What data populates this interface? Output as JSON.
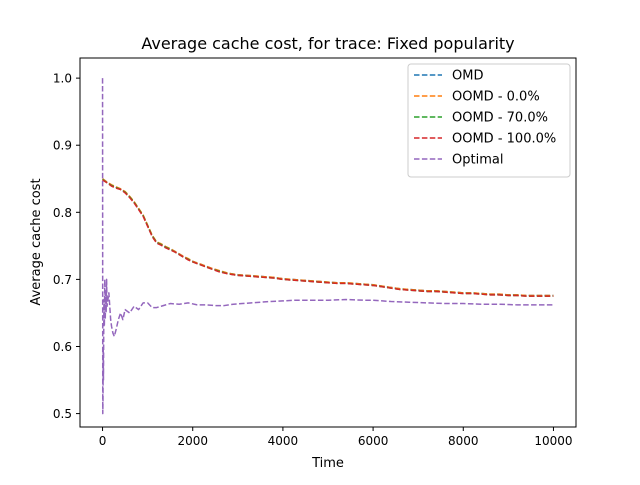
{
  "chart_data": {
    "type": "line",
    "title": "Average cache cost, for trace: Fixed popularity",
    "xlabel": "Time",
    "ylabel": "Average cache cost",
    "xlim": [
      -500,
      10500
    ],
    "ylim": [
      0.48,
      1.03
    ],
    "xticks": [
      {
        "value": 0,
        "label": "0"
      },
      {
        "value": 2000,
        "label": "2000"
      },
      {
        "value": 4000,
        "label": "4000"
      },
      {
        "value": 6000,
        "label": "6000"
      },
      {
        "value": 8000,
        "label": "8000"
      },
      {
        "value": 10000,
        "label": "10000"
      }
    ],
    "yticks": [
      {
        "value": 0.5,
        "label": "0.5"
      },
      {
        "value": 0.6,
        "label": "0.6"
      },
      {
        "value": 0.7,
        "label": "0.7"
      },
      {
        "value": 0.8,
        "label": "0.8"
      },
      {
        "value": 0.9,
        "label": "0.9"
      },
      {
        "value": 1.0,
        "label": "1.0"
      }
    ],
    "grid": false,
    "legend": {
      "placement": "top-right",
      "entries": [
        {
          "label": "OMD",
          "color": "#1f77b4"
        },
        {
          "label": "OOMD - 0.0%",
          "color": "#ff7f0e"
        },
        {
          "label": "OOMD - 70.0%",
          "color": "#2ca02c"
        },
        {
          "label": "OOMD - 100.0%",
          "color": "#d62728"
        },
        {
          "label": "Optimal",
          "color": "#9467bd"
        }
      ]
    },
    "series": [
      {
        "name": "OMD",
        "color": "#1f77b4",
        "x": [
          0,
          100,
          200,
          300,
          400,
          500,
          600,
          700,
          800,
          900,
          1000,
          1100,
          1200,
          1300,
          1400,
          1500,
          1600,
          1700,
          1800,
          1900,
          2000,
          2200,
          2400,
          2600,
          2800,
          3000,
          3200,
          3400,
          3600,
          3800,
          4000,
          4200,
          4400,
          4600,
          4800,
          5000,
          5200,
          5400,
          5600,
          5800,
          6000,
          6200,
          6400,
          6600,
          6800,
          7000,
          7200,
          7400,
          7600,
          7800,
          8000,
          8200,
          8400,
          8600,
          8800,
          9000,
          9200,
          9400,
          9600,
          9800,
          10000
        ],
        "y": [
          0.85,
          0.845,
          0.84,
          0.837,
          0.835,
          0.83,
          0.823,
          0.815,
          0.805,
          0.795,
          0.78,
          0.765,
          0.755,
          0.752,
          0.748,
          0.745,
          0.742,
          0.738,
          0.734,
          0.73,
          0.727,
          0.722,
          0.717,
          0.712,
          0.709,
          0.707,
          0.706,
          0.705,
          0.704,
          0.703,
          0.701,
          0.7,
          0.699,
          0.698,
          0.697,
          0.696,
          0.695,
          0.695,
          0.694,
          0.693,
          0.692,
          0.69,
          0.688,
          0.686,
          0.685,
          0.684,
          0.683,
          0.683,
          0.682,
          0.681,
          0.68,
          0.68,
          0.679,
          0.678,
          0.678,
          0.677,
          0.677,
          0.676,
          0.676,
          0.676,
          0.676
        ]
      },
      {
        "name": "OOMD - 0.0%",
        "color": "#ff7f0e",
        "x": [
          0,
          100,
          200,
          300,
          400,
          500,
          600,
          700,
          800,
          900,
          1000,
          1100,
          1200,
          1300,
          1400,
          1500,
          1600,
          1700,
          1800,
          1900,
          2000,
          2200,
          2400,
          2600,
          2800,
          3000,
          3200,
          3400,
          3600,
          3800,
          4000,
          4200,
          4400,
          4600,
          4800,
          5000,
          5200,
          5400,
          5600,
          5800,
          6000,
          6200,
          6400,
          6600,
          6800,
          7000,
          7200,
          7400,
          7600,
          7800,
          8000,
          8200,
          8400,
          8600,
          8800,
          9000,
          9200,
          9400,
          9600,
          9800,
          10000
        ],
        "y": [
          0.85,
          0.845,
          0.841,
          0.838,
          0.835,
          0.831,
          0.824,
          0.816,
          0.806,
          0.796,
          0.781,
          0.766,
          0.756,
          0.753,
          0.749,
          0.746,
          0.742,
          0.738,
          0.734,
          0.731,
          0.727,
          0.722,
          0.717,
          0.713,
          0.709,
          0.707,
          0.706,
          0.705,
          0.704,
          0.703,
          0.701,
          0.7,
          0.699,
          0.698,
          0.697,
          0.696,
          0.695,
          0.695,
          0.694,
          0.693,
          0.692,
          0.69,
          0.688,
          0.686,
          0.685,
          0.684,
          0.683,
          0.683,
          0.682,
          0.681,
          0.68,
          0.68,
          0.679,
          0.678,
          0.678,
          0.677,
          0.677,
          0.676,
          0.676,
          0.676,
          0.676
        ]
      },
      {
        "name": "OOMD - 70.0%",
        "color": "#2ca02c",
        "x": [
          0,
          100,
          200,
          300,
          400,
          500,
          600,
          700,
          800,
          900,
          1000,
          1100,
          1200,
          1300,
          1400,
          1500,
          1600,
          1700,
          1800,
          1900,
          2000,
          2200,
          2400,
          2600,
          2800,
          3000,
          3200,
          3400,
          3600,
          3800,
          4000,
          4200,
          4400,
          4600,
          4800,
          5000,
          5200,
          5400,
          5600,
          5800,
          6000,
          6200,
          6400,
          6600,
          6800,
          7000,
          7200,
          7400,
          7600,
          7800,
          8000,
          8200,
          8400,
          8600,
          8800,
          9000,
          9200,
          9400,
          9600,
          9800,
          10000
        ],
        "y": [
          0.849,
          0.844,
          0.84,
          0.837,
          0.834,
          0.83,
          0.823,
          0.815,
          0.805,
          0.795,
          0.78,
          0.765,
          0.755,
          0.752,
          0.748,
          0.745,
          0.741,
          0.737,
          0.733,
          0.73,
          0.726,
          0.721,
          0.716,
          0.712,
          0.708,
          0.706,
          0.705,
          0.704,
          0.703,
          0.702,
          0.7,
          0.699,
          0.698,
          0.697,
          0.696,
          0.695,
          0.694,
          0.694,
          0.693,
          0.692,
          0.691,
          0.689,
          0.687,
          0.685,
          0.684,
          0.683,
          0.682,
          0.682,
          0.681,
          0.68,
          0.679,
          0.679,
          0.678,
          0.677,
          0.677,
          0.676,
          0.676,
          0.675,
          0.675,
          0.675,
          0.675
        ]
      },
      {
        "name": "OOMD - 100.0%",
        "color": "#d62728",
        "x": [
          0,
          100,
          200,
          300,
          400,
          500,
          600,
          700,
          800,
          900,
          1000,
          1100,
          1200,
          1300,
          1400,
          1500,
          1600,
          1700,
          1800,
          1900,
          2000,
          2200,
          2400,
          2600,
          2800,
          3000,
          3200,
          3400,
          3600,
          3800,
          4000,
          4200,
          4400,
          4600,
          4800,
          5000,
          5200,
          5400,
          5600,
          5800,
          6000,
          6200,
          6400,
          6600,
          6800,
          7000,
          7200,
          7400,
          7600,
          7800,
          8000,
          8200,
          8400,
          8600,
          8800,
          9000,
          9200,
          9400,
          9600,
          9800,
          10000
        ],
        "y": [
          0.848,
          0.844,
          0.839,
          0.836,
          0.834,
          0.829,
          0.822,
          0.814,
          0.804,
          0.794,
          0.779,
          0.764,
          0.754,
          0.751,
          0.747,
          0.744,
          0.741,
          0.737,
          0.733,
          0.729,
          0.726,
          0.721,
          0.716,
          0.711,
          0.708,
          0.706,
          0.705,
          0.704,
          0.703,
          0.702,
          0.7,
          0.699,
          0.698,
          0.697,
          0.696,
          0.695,
          0.694,
          0.694,
          0.693,
          0.692,
          0.691,
          0.689,
          0.687,
          0.685,
          0.684,
          0.683,
          0.682,
          0.682,
          0.681,
          0.68,
          0.679,
          0.679,
          0.678,
          0.677,
          0.677,
          0.676,
          0.676,
          0.675,
          0.675,
          0.675,
          0.675
        ]
      },
      {
        "name": "Optimal",
        "color": "#9467bd",
        "x": [
          0,
          5,
          10,
          15,
          20,
          30,
          40,
          50,
          60,
          70,
          80,
          90,
          100,
          120,
          140,
          160,
          180,
          200,
          230,
          260,
          300,
          350,
          400,
          450,
          500,
          600,
          700,
          800,
          900,
          1000,
          1100,
          1200,
          1300,
          1400,
          1500,
          1700,
          1900,
          2100,
          2300,
          2500,
          2700,
          2900,
          3100,
          3300,
          3500,
          3700,
          4000,
          4300,
          4600,
          5000,
          5400,
          5800,
          6000,
          6400,
          6800,
          7200,
          7600,
          8000,
          8400,
          8800,
          9200,
          9600,
          10000
        ],
        "y": [
          1.0,
          0.5,
          0.52,
          0.6,
          0.55,
          0.67,
          0.63,
          0.7,
          0.64,
          0.68,
          0.65,
          0.7,
          0.66,
          0.67,
          0.68,
          0.66,
          0.64,
          0.63,
          0.62,
          0.615,
          0.625,
          0.64,
          0.65,
          0.64,
          0.655,
          0.65,
          0.66,
          0.655,
          0.665,
          0.665,
          0.658,
          0.658,
          0.66,
          0.662,
          0.664,
          0.663,
          0.665,
          0.662,
          0.662,
          0.661,
          0.661,
          0.663,
          0.664,
          0.665,
          0.666,
          0.667,
          0.668,
          0.669,
          0.669,
          0.669,
          0.67,
          0.669,
          0.669,
          0.667,
          0.666,
          0.665,
          0.664,
          0.664,
          0.663,
          0.663,
          0.662,
          0.662,
          0.662
        ]
      }
    ]
  }
}
